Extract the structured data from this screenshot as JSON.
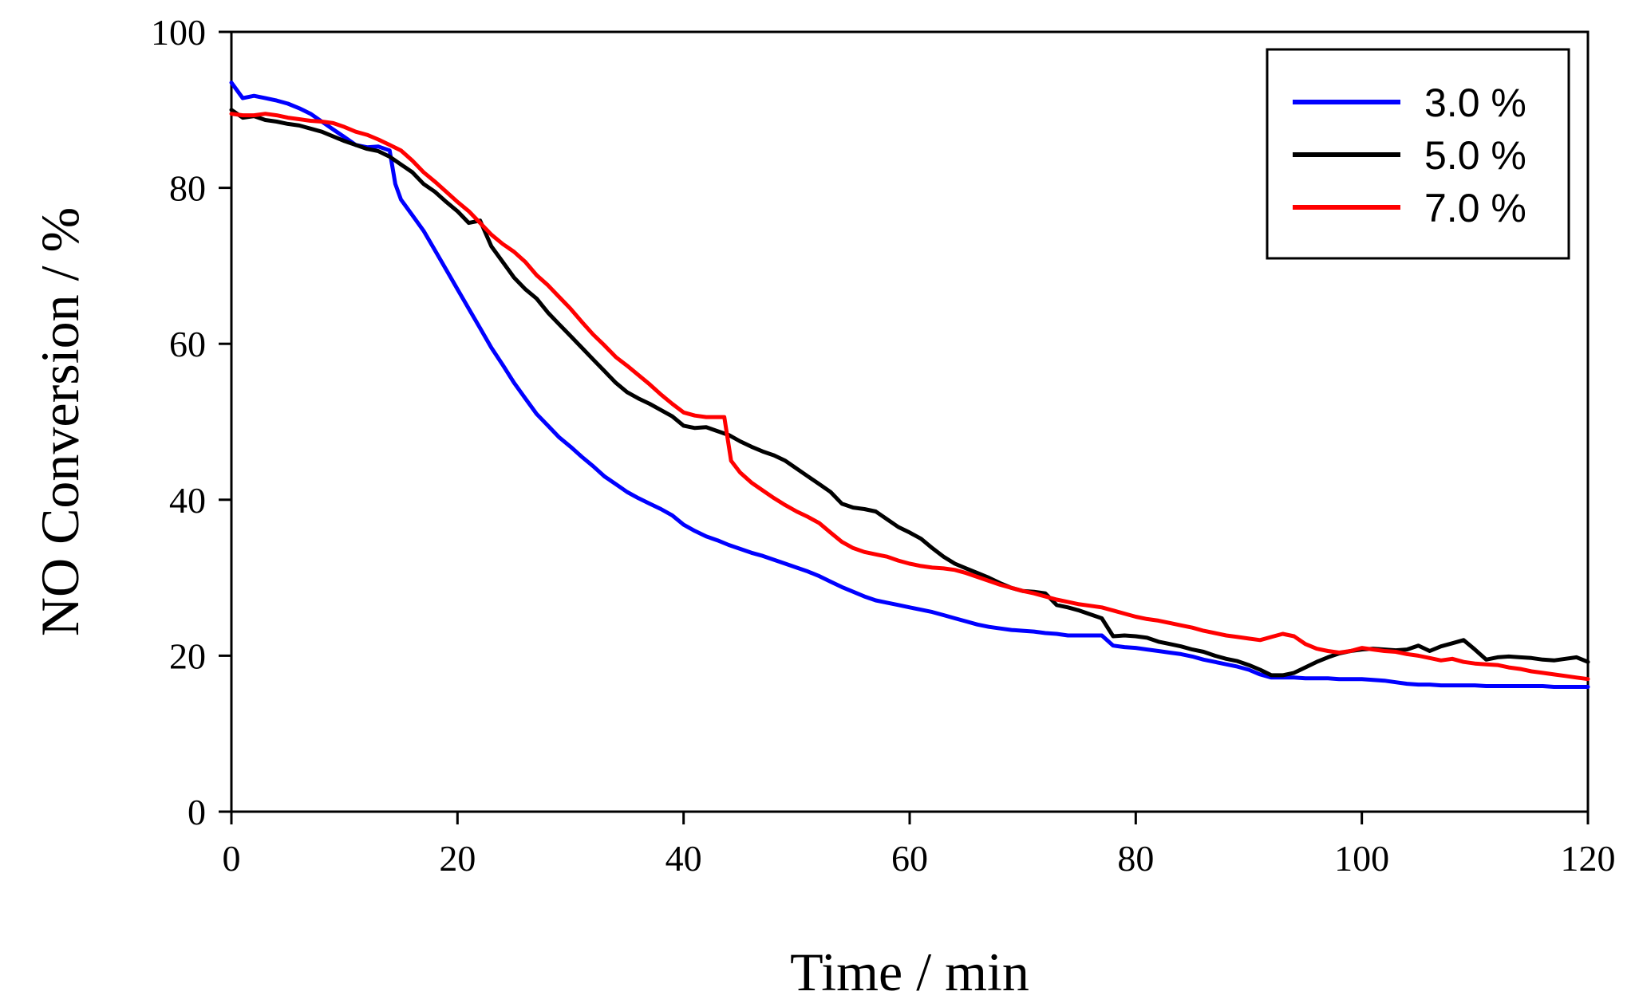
{
  "chart_data": {
    "type": "line",
    "title": "",
    "xlabel": "Time / min",
    "ylabel": "NO Conversion / %",
    "xlim": [
      0,
      120
    ],
    "ylim": [
      0,
      100
    ],
    "xticks": [
      0,
      20,
      40,
      60,
      80,
      100,
      120
    ],
    "yticks": [
      0,
      20,
      40,
      60,
      80,
      100
    ],
    "xtick_labels": [
      "0",
      "20",
      "40",
      "60",
      "80",
      "100",
      "120"
    ],
    "ytick_labels": [
      "0",
      "20",
      "40",
      "60",
      "80",
      "100"
    ],
    "grid": false,
    "legend_position": "top-right",
    "series": [
      {
        "name": "3.0 %",
        "color": "#0000ff",
        "x": [
          0,
          1,
          2,
          3,
          4,
          5,
          6,
          7,
          8,
          9,
          10,
          11,
          12,
          13,
          14,
          14.5,
          15,
          16,
          17,
          18,
          19,
          20,
          21,
          22,
          23,
          24,
          25,
          26,
          27,
          28,
          29,
          30,
          31,
          32,
          33,
          34,
          35,
          36,
          37,
          38,
          39,
          40,
          41,
          42,
          43,
          44,
          45,
          46,
          47,
          48,
          49,
          50,
          51,
          52,
          53,
          54,
          55,
          56,
          57,
          58,
          59,
          60,
          61,
          62,
          63,
          64,
          65,
          66,
          67,
          68,
          69,
          70,
          71,
          72,
          73,
          74,
          75,
          76,
          77,
          78,
          79,
          80,
          81,
          82,
          83,
          84,
          85,
          86,
          87,
          88,
          89,
          90,
          91,
          92,
          93,
          94,
          95,
          96,
          97,
          98,
          99,
          100,
          101,
          102,
          103,
          104,
          105,
          106,
          107,
          108,
          109,
          110,
          111,
          112,
          113,
          114,
          115,
          116,
          117,
          118,
          119,
          120
        ],
        "values": [
          93.5,
          91.5,
          91.8,
          91.5,
          91.2,
          90.8,
          90.2,
          89.5,
          88.5,
          87.5,
          86.5,
          85.5,
          85.2,
          85.3,
          84.8,
          80.5,
          78.5,
          76.5,
          74.5,
          72.0,
          69.5,
          67.0,
          64.5,
          62.0,
          59.5,
          57.3,
          55.0,
          53.0,
          51.0,
          49.5,
          48.0,
          46.8,
          45.5,
          44.3,
          43.0,
          42.0,
          41.0,
          40.2,
          39.5,
          38.8,
          38.0,
          36.8,
          36.0,
          35.3,
          34.8,
          34.2,
          33.7,
          33.2,
          32.8,
          32.3,
          31.8,
          31.3,
          30.8,
          30.2,
          29.5,
          28.8,
          28.2,
          27.6,
          27.1,
          26.8,
          26.5,
          26.2,
          25.9,
          25.6,
          25.2,
          24.8,
          24.4,
          24.0,
          23.7,
          23.5,
          23.3,
          23.2,
          23.1,
          22.9,
          22.8,
          22.6,
          22.6,
          22.6,
          22.6,
          21.3,
          21.1,
          21.0,
          20.8,
          20.6,
          20.4,
          20.2,
          19.9,
          19.5,
          19.2,
          18.9,
          18.6,
          18.2,
          17.6,
          17.2,
          17.2,
          17.2,
          17.1,
          17.1,
          17.1,
          17.0,
          17.0,
          17.0,
          16.9,
          16.8,
          16.6,
          16.4,
          16.3,
          16.3,
          16.2,
          16.2,
          16.2,
          16.2,
          16.1,
          16.1,
          16.1,
          16.1,
          16.1,
          16.1,
          16.0,
          16.0,
          16.0,
          16.0
        ]
      },
      {
        "name": "5.0 %",
        "color": "#000000",
        "x": [
          0,
          1,
          2,
          3,
          4,
          5,
          6,
          7,
          8,
          9,
          10,
          11,
          12,
          13,
          14,
          15,
          16,
          17,
          18,
          19,
          20,
          21,
          22,
          23,
          24,
          25,
          26,
          27,
          28,
          29,
          30,
          31,
          32,
          33,
          34,
          35,
          36,
          37,
          38,
          39,
          40,
          41,
          42,
          43,
          44,
          45,
          46,
          47,
          48,
          49,
          50,
          51,
          52,
          53,
          54,
          55,
          56,
          57,
          58,
          59,
          60,
          61,
          62,
          63,
          64,
          65,
          66,
          67,
          68,
          69,
          70,
          71,
          72,
          73,
          74,
          75,
          76,
          77,
          78,
          79,
          80,
          81,
          82,
          83,
          84,
          85,
          86,
          87,
          88,
          89,
          90,
          91,
          92,
          93,
          94,
          95,
          96,
          97,
          98,
          99,
          100,
          101,
          102,
          103,
          104,
          105,
          106,
          107,
          108,
          109,
          110,
          111,
          112,
          113,
          114,
          115,
          116,
          117,
          118,
          119,
          120
        ],
        "values": [
          90.0,
          89.0,
          89.2,
          88.7,
          88.5,
          88.2,
          88.0,
          87.6,
          87.2,
          86.6,
          86.0,
          85.5,
          85.0,
          84.7,
          84.0,
          83.0,
          82.0,
          80.5,
          79.5,
          78.2,
          77.0,
          75.5,
          75.8,
          72.5,
          70.5,
          68.5,
          67.0,
          65.8,
          64.0,
          62.5,
          61.0,
          59.5,
          58.0,
          56.5,
          55.0,
          53.8,
          53.0,
          52.3,
          51.5,
          50.7,
          49.5,
          49.2,
          49.3,
          48.8,
          48.3,
          47.5,
          46.8,
          46.2,
          45.7,
          45.0,
          44.0,
          43.0,
          42.0,
          41.0,
          39.5,
          39.0,
          38.8,
          38.5,
          37.5,
          36.5,
          35.8,
          35.0,
          33.8,
          32.7,
          31.8,
          31.2,
          30.6,
          30.0,
          29.3,
          28.7,
          28.3,
          28.2,
          28.0,
          26.5,
          26.2,
          25.8,
          25.3,
          24.8,
          22.5,
          22.6,
          22.5,
          22.3,
          21.8,
          21.5,
          21.2,
          20.8,
          20.5,
          20.0,
          19.6,
          19.3,
          18.8,
          18.2,
          17.5,
          17.5,
          17.8,
          18.5,
          19.2,
          19.8,
          20.3,
          20.6,
          20.8,
          20.9,
          20.8,
          20.7,
          20.8,
          21.3,
          20.6,
          21.2,
          21.6,
          22.0,
          20.8,
          19.5,
          19.8,
          19.9,
          19.8,
          19.7,
          19.5,
          19.4,
          19.6,
          19.8,
          19.2
        ]
      },
      {
        "name": "7.0 %",
        "color": "#ff0000",
        "x": [
          0,
          1,
          2,
          3,
          4,
          5,
          6,
          7,
          8,
          9,
          10,
          11,
          12,
          13,
          14,
          15,
          16,
          17,
          18,
          19,
          20,
          21,
          22,
          23,
          24,
          25,
          26,
          27,
          28,
          29,
          30,
          31,
          32,
          33,
          34,
          35,
          36,
          37,
          38,
          39,
          40,
          41,
          42,
          43,
          43.6,
          44.2,
          45,
          46,
          47,
          48,
          49,
          50,
          51,
          52,
          53,
          54,
          55,
          56,
          57,
          58,
          59,
          60,
          61,
          62,
          63,
          64,
          65,
          66,
          67,
          68,
          69,
          70,
          71,
          72,
          73,
          74,
          75,
          76,
          77,
          78,
          79,
          80,
          81,
          82,
          83,
          84,
          85,
          86,
          87,
          88,
          89,
          90,
          91,
          92,
          93,
          94,
          95,
          96,
          97,
          98,
          99,
          100,
          101,
          102,
          103,
          104,
          105,
          106,
          107,
          108,
          109,
          110,
          111,
          112,
          113,
          114,
          115,
          116,
          117,
          118,
          119,
          120
        ],
        "values": [
          89.5,
          89.3,
          89.3,
          89.5,
          89.3,
          89.0,
          88.8,
          88.6,
          88.5,
          88.3,
          87.8,
          87.2,
          86.8,
          86.2,
          85.5,
          84.8,
          83.5,
          82.0,
          80.8,
          79.5,
          78.2,
          77.0,
          75.5,
          74.0,
          72.8,
          71.8,
          70.5,
          68.8,
          67.5,
          66.0,
          64.5,
          62.8,
          61.2,
          59.8,
          58.3,
          57.2,
          56.0,
          54.8,
          53.5,
          52.3,
          51.2,
          50.8,
          50.6,
          50.6,
          50.6,
          45.0,
          43.5,
          42.2,
          41.2,
          40.2,
          39.3,
          38.5,
          37.8,
          37.0,
          35.8,
          34.6,
          33.8,
          33.3,
          33.0,
          32.7,
          32.2,
          31.8,
          31.5,
          31.3,
          31.2,
          31.0,
          30.6,
          30.1,
          29.6,
          29.1,
          28.7,
          28.3,
          28.0,
          27.6,
          27.2,
          26.9,
          26.6,
          26.4,
          26.2,
          25.8,
          25.4,
          25.0,
          24.7,
          24.5,
          24.2,
          23.9,
          23.6,
          23.2,
          22.9,
          22.6,
          22.4,
          22.2,
          22.0,
          22.4,
          22.8,
          22.5,
          21.5,
          20.9,
          20.6,
          20.4,
          20.6,
          21.0,
          20.8,
          20.6,
          20.5,
          20.2,
          20.0,
          19.7,
          19.4,
          19.6,
          19.2,
          19.0,
          18.9,
          18.8,
          18.5,
          18.3,
          18.0,
          17.8,
          17.6,
          17.4,
          17.2,
          17.0
        ]
      }
    ]
  }
}
